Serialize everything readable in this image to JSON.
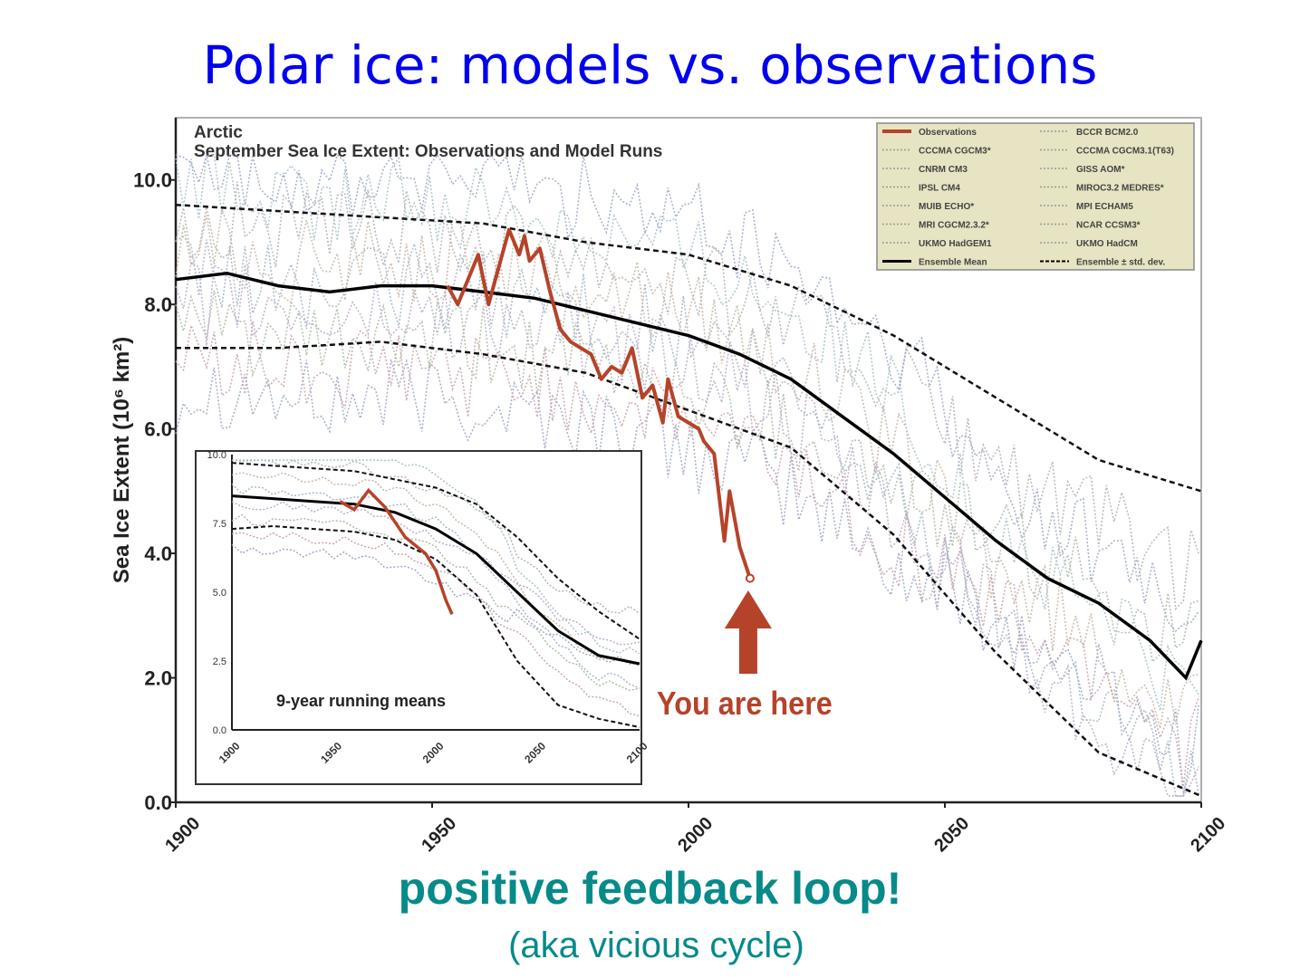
{
  "slide": {
    "title": "Polar ice: models vs. observations",
    "caption_main": "positive feedback loop!",
    "caption_sub": "(aka vicious cycle)"
  },
  "colors": {
    "title": "#0000ee",
    "caption": "#078a8a",
    "observations": "#b5432a",
    "ensemble": "#000000",
    "legend_bg": "#e6e4c2"
  },
  "chart_data": [
    {
      "type": "line",
      "region": "Arctic",
      "title": "September Sea Ice Extent: Observations and Model Runs",
      "ylabel": "Sea Ice Extent (10⁶ km²)",
      "xlim": [
        1900,
        2100
      ],
      "ylim": [
        0,
        11
      ],
      "x_ticks": [
        "1900",
        "1950",
        "2000",
        "2050",
        "2100"
      ],
      "y_ticks": [
        "0.0",
        "2.0",
        "4.0",
        "6.0",
        "8.0",
        "10.0"
      ],
      "legend_position": "top-right",
      "legend": [
        "Observations",
        "BCCR BCM2.0",
        "CCCMA CGCM3*",
        "CCCMA CGCM3.1(T63)",
        "CNRM CM3",
        "GISS AOM*",
        "IPSL CM4",
        "MIROC3.2 MEDRES*",
        "MUIB ECHO*",
        "MPI ECHAM5",
        "MRI CGCM2.3.2*",
        "NCAR CCSM3*",
        "UKMO HadGEM1",
        "UKMO HadCM",
        "Ensemble Mean",
        "Ensemble ± std. dev."
      ],
      "series": [
        {
          "name": "Observations",
          "x": [
            1953,
            1955,
            1957,
            1959,
            1961,
            1963,
            1965,
            1967,
            1968,
            1969,
            1971,
            1973,
            1975,
            1977,
            1979,
            1981,
            1983,
            1985,
            1987,
            1989,
            1991,
            1993,
            1995,
            1996,
            1998,
            2000,
            2002,
            2003,
            2005,
            2007,
            2008,
            2010,
            2012
          ],
          "y": [
            8.3,
            8.0,
            8.4,
            8.8,
            8.0,
            8.6,
            9.2,
            8.8,
            9.1,
            8.7,
            8.9,
            8.2,
            7.6,
            7.4,
            7.3,
            7.2,
            6.8,
            7.0,
            6.9,
            7.3,
            6.5,
            6.7,
            6.1,
            6.8,
            6.2,
            6.1,
            6.0,
            5.8,
            5.6,
            4.2,
            5.0,
            4.1,
            3.6
          ]
        },
        {
          "name": "Ensemble Mean",
          "x": [
            1900,
            1910,
            1920,
            1930,
            1940,
            1950,
            1960,
            1970,
            1980,
            1990,
            2000,
            2010,
            2020,
            2030,
            2040,
            2050,
            2060,
            2070,
            2080,
            2090,
            2097,
            2100
          ],
          "y": [
            8.4,
            8.5,
            8.3,
            8.2,
            8.3,
            8.3,
            8.2,
            8.1,
            7.9,
            7.7,
            7.5,
            7.2,
            6.8,
            6.2,
            5.6,
            4.9,
            4.2,
            3.6,
            3.2,
            2.6,
            2.0,
            2.6
          ]
        },
        {
          "name": "Ensemble ± std. dev. (upper)",
          "x": [
            1900,
            1920,
            1940,
            1960,
            1980,
            2000,
            2020,
            2040,
            2060,
            2080,
            2100
          ],
          "y": [
            9.6,
            9.5,
            9.4,
            9.3,
            9.0,
            8.8,
            8.3,
            7.5,
            6.5,
            5.5,
            5.0
          ]
        },
        {
          "name": "Ensemble ± std. dev. (lower)",
          "x": [
            1900,
            1920,
            1940,
            1960,
            1980,
            2000,
            2020,
            2040,
            2060,
            2080,
            2100
          ],
          "y": [
            7.3,
            7.3,
            7.4,
            7.2,
            6.9,
            6.3,
            5.7,
            4.3,
            2.4,
            0.8,
            0.1
          ]
        }
      ],
      "annotation": "You are here",
      "annotation_x": 2012,
      "annotation_y": 3.6
    },
    {
      "type": "line",
      "title": "9-year running means",
      "xlim": [
        1900,
        2100
      ],
      "ylim": [
        0,
        10
      ],
      "x_ticks": [
        "1900",
        "1950",
        "2000",
        "2050",
        "2100"
      ],
      "y_ticks": [
        "0.0",
        "2.5",
        "5.0",
        "7.5",
        "10.0"
      ],
      "series": [
        {
          "name": "Observations",
          "x": [
            1953,
            1960,
            1967,
            1975,
            1985,
            1995,
            2000,
            2005,
            2008
          ],
          "y": [
            8.3,
            8.0,
            8.7,
            8.1,
            7.0,
            6.4,
            5.8,
            4.7,
            4.2
          ]
        },
        {
          "name": "Ensemble Mean",
          "x": [
            1900,
            1920,
            1940,
            1960,
            1980,
            2000,
            2020,
            2040,
            2060,
            2080,
            2100
          ],
          "y": [
            8.5,
            8.4,
            8.3,
            8.2,
            7.9,
            7.3,
            6.4,
            5.0,
            3.6,
            2.7,
            2.4
          ]
        },
        {
          "name": "Ensemble ± std. dev. (upper)",
          "x": [
            1900,
            1920,
            1940,
            1960,
            1980,
            2000,
            2020,
            2040,
            2060,
            2080,
            2100
          ],
          "y": [
            9.7,
            9.6,
            9.5,
            9.4,
            9.1,
            8.8,
            8.2,
            7.0,
            5.5,
            4.3,
            3.3
          ]
        },
        {
          "name": "Ensemble ± std. dev. (lower)",
          "x": [
            1900,
            1920,
            1940,
            1960,
            1980,
            2000,
            2020,
            2040,
            2060,
            2080,
            2100
          ],
          "y": [
            7.3,
            7.4,
            7.3,
            7.2,
            6.9,
            6.2,
            4.9,
            2.5,
            0.9,
            0.4,
            0.1
          ]
        }
      ]
    }
  ]
}
